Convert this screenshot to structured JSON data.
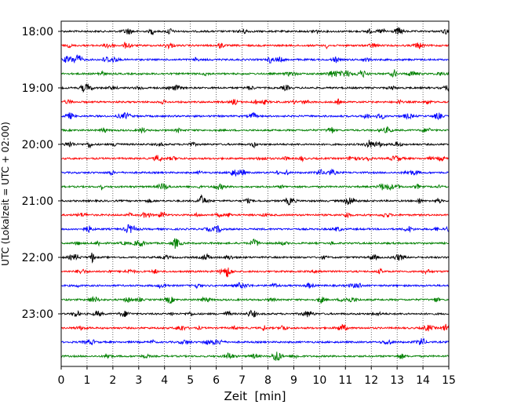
{
  "chart_data": {
    "type": "line",
    "title": "",
    "xlabel": "Zeit  [min]",
    "ylabel": "UTC (Lokalzeit = UTC + 02:00)",
    "xlim": [
      0,
      15
    ],
    "x_ticks": [
      0,
      1,
      2,
      3,
      4,
      5,
      6,
      7,
      8,
      9,
      10,
      11,
      12,
      13,
      14,
      15
    ],
    "y_tick_labels": [
      "18:00",
      "19:00",
      "20:00",
      "21:00",
      "22:00",
      "23:00"
    ],
    "trace_start_times": [
      "18:00",
      "18:15",
      "18:30",
      "18:45",
      "19:00",
      "19:15",
      "19:30",
      "19:45",
      "20:00",
      "20:15",
      "20:30",
      "20:45",
      "21:00",
      "21:15",
      "21:30",
      "21:45",
      "22:00",
      "22:15",
      "22:30",
      "22:45",
      "23:00",
      "23:15",
      "23:30",
      "23:45"
    ],
    "trace_color_cycle": [
      "#000000",
      "#ff0000",
      "#0000ff",
      "#008000"
    ],
    "vertical_grid": true,
    "vertical_grid_style": "dotted",
    "horizontal_grid": false,
    "legend": "none"
  }
}
